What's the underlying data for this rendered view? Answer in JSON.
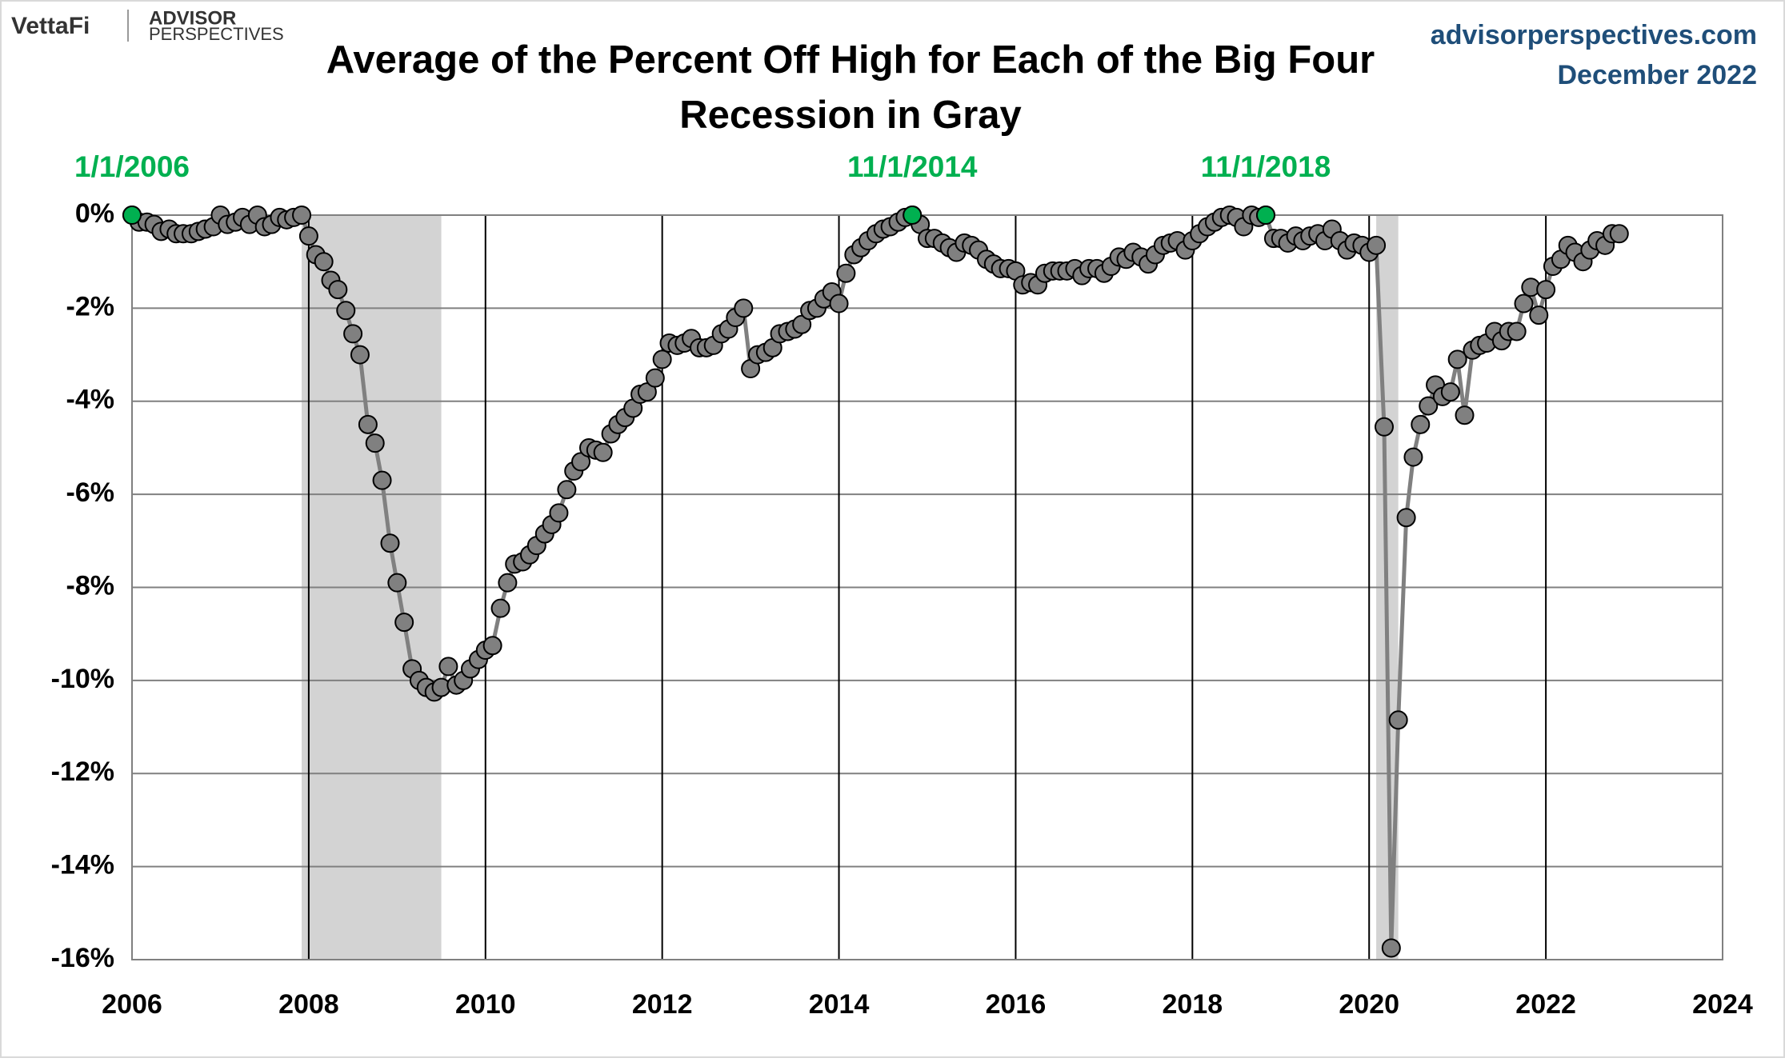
{
  "header": {
    "brand": "VettaFi",
    "logo_top": "ADVISOR",
    "logo_bottom": "PERSPECTIVES",
    "site": "advisorperspectives.com",
    "date": "December 2022"
  },
  "chart_data": {
    "type": "line",
    "title": "Average of the Percent Off High for Each of the Big Four",
    "subtitle": "Recession in Gray",
    "color": "#808080",
    "marker_edge": "#000000",
    "grid": true,
    "xlim": [
      2006,
      2024
    ],
    "xticks": [
      2006,
      2008,
      2010,
      2012,
      2014,
      2016,
      2018,
      2020,
      2022,
      2024
    ],
    "ylim": [
      -16,
      0
    ],
    "yticks": [
      {
        "value": 0,
        "label": "0%"
      },
      {
        "value": -2,
        "label": "-2%"
      },
      {
        "value": -4,
        "label": "-4%"
      },
      {
        "value": -6,
        "label": "-6%"
      },
      {
        "value": -8,
        "label": "-8%"
      },
      {
        "value": -10,
        "label": "-10%"
      },
      {
        "value": -12,
        "label": "-12%"
      },
      {
        "value": -14,
        "label": "-14%"
      },
      {
        "value": -16,
        "label": "-16%"
      }
    ],
    "recessions": [
      [
        2007.92,
        2009.5
      ],
      [
        2020.08,
        2020.33
      ]
    ],
    "recession_color": "#d3d3d3",
    "highlight_color": "#00b050",
    "highlights": [
      {
        "label": "1/1/2006",
        "x": 2006,
        "y": 0
      },
      {
        "label": "11/1/2014",
        "x": 2014.83,
        "y": 0
      },
      {
        "label": "11/1/2018",
        "x": 2018.83,
        "y": 0
      }
    ],
    "x": [
      2006,
      2006.08,
      2006.17,
      2006.25,
      2006.33,
      2006.42,
      2006.5,
      2006.58,
      2006.67,
      2006.75,
      2006.83,
      2006.92,
      2007,
      2007.08,
      2007.17,
      2007.25,
      2007.33,
      2007.42,
      2007.5,
      2007.58,
      2007.67,
      2007.75,
      2007.83,
      2007.92,
      2008,
      2008.08,
      2008.17,
      2008.25,
      2008.33,
      2008.42,
      2008.5,
      2008.58,
      2008.67,
      2008.75,
      2008.83,
      2008.92,
      2009,
      2009.08,
      2009.17,
      2009.25,
      2009.33,
      2009.42,
      2009.5,
      2009.58,
      2009.67,
      2009.75,
      2009.83,
      2009.92,
      2010,
      2010.08,
      2010.17,
      2010.25,
      2010.33,
      2010.42,
      2010.5,
      2010.58,
      2010.67,
      2010.75,
      2010.83,
      2010.92,
      2011,
      2011.08,
      2011.17,
      2011.25,
      2011.33,
      2011.42,
      2011.5,
      2011.58,
      2011.67,
      2011.75,
      2011.83,
      2011.92,
      2012,
      2012.08,
      2012.17,
      2012.25,
      2012.33,
      2012.42,
      2012.5,
      2012.58,
      2012.67,
      2012.75,
      2012.83,
      2012.92,
      2013,
      2013.08,
      2013.17,
      2013.25,
      2013.33,
      2013.42,
      2013.5,
      2013.58,
      2013.67,
      2013.75,
      2013.83,
      2013.92,
      2014,
      2014.08,
      2014.17,
      2014.25,
      2014.33,
      2014.42,
      2014.5,
      2014.58,
      2014.67,
      2014.75,
      2014.83,
      2014.92,
      2015,
      2015.08,
      2015.17,
      2015.25,
      2015.33,
      2015.42,
      2015.5,
      2015.58,
      2015.67,
      2015.75,
      2015.83,
      2015.92,
      2016,
      2016.08,
      2016.17,
      2016.25,
      2016.33,
      2016.42,
      2016.5,
      2016.58,
      2016.67,
      2016.75,
      2016.83,
      2016.92,
      2017,
      2017.08,
      2017.17,
      2017.25,
      2017.33,
      2017.42,
      2017.5,
      2017.58,
      2017.67,
      2017.75,
      2017.83,
      2017.92,
      2018,
      2018.08,
      2018.17,
      2018.25,
      2018.33,
      2018.42,
      2018.5,
      2018.58,
      2018.67,
      2018.75,
      2018.83,
      2018.92,
      2019,
      2019.08,
      2019.17,
      2019.25,
      2019.33,
      2019.42,
      2019.5,
      2019.58,
      2019.67,
      2019.75,
      2019.83,
      2019.92,
      2020,
      2020.08,
      2020.17,
      2020.25,
      2020.33,
      2020.42,
      2020.5,
      2020.58,
      2020.67,
      2020.75,
      2020.83,
      2020.92,
      2021,
      2021.08,
      2021.17,
      2021.25,
      2021.33,
      2021.42,
      2021.5,
      2021.58,
      2021.67,
      2021.75,
      2021.83,
      2021.92,
      2022,
      2022.08,
      2022.17,
      2022.25,
      2022.33,
      2022.42,
      2022.5,
      2022.58,
      2022.67,
      2022.75,
      2022.83
    ],
    "values": [
      0,
      -0.15,
      -0.15,
      -0.2,
      -0.35,
      -0.3,
      -0.4,
      -0.4,
      -0.4,
      -0.35,
      -0.3,
      -0.25,
      0,
      -0.2,
      -0.15,
      -0.05,
      -0.2,
      0,
      -0.25,
      -0.2,
      -0.05,
      -0.1,
      -0.05,
      0,
      -0.45,
      -0.85,
      -1.0,
      -1.4,
      -1.6,
      -2.05,
      -2.55,
      -3.0,
      -4.5,
      -4.9,
      -5.7,
      -7.05,
      -7.9,
      -8.75,
      -9.75,
      -10.0,
      -10.15,
      -10.25,
      -10.15,
      -9.7,
      -10.1,
      -10.0,
      -9.75,
      -9.55,
      -9.35,
      -9.25,
      -8.45,
      -7.9,
      -7.5,
      -7.45,
      -7.3,
      -7.1,
      -6.85,
      -6.65,
      -6.4,
      -5.9,
      -5.5,
      -5.3,
      -5.0,
      -5.05,
      -5.1,
      -4.7,
      -4.5,
      -4.35,
      -4.15,
      -3.85,
      -3.8,
      -3.5,
      -3.1,
      -2.75,
      -2.8,
      -2.75,
      -2.65,
      -2.85,
      -2.85,
      -2.8,
      -2.55,
      -2.45,
      -2.2,
      -2.0,
      -3.3,
      -3.0,
      -2.95,
      -2.85,
      -2.55,
      -2.5,
      -2.45,
      -2.35,
      -2.05,
      -2.0,
      -1.8,
      -1.65,
      -1.9,
      -1.25,
      -0.85,
      -0.7,
      -0.55,
      -0.4,
      -0.3,
      -0.25,
      -0.15,
      -0.05,
      0,
      -0.2,
      -0.5,
      -0.5,
      -0.6,
      -0.7,
      -0.8,
      -0.6,
      -0.65,
      -0.75,
      -0.95,
      -1.05,
      -1.15,
      -1.15,
      -1.2,
      -1.5,
      -1.45,
      -1.5,
      -1.25,
      -1.2,
      -1.2,
      -1.2,
      -1.15,
      -1.3,
      -1.15,
      -1.15,
      -1.25,
      -1.1,
      -0.9,
      -0.95,
      -0.8,
      -0.9,
      -1.05,
      -0.85,
      -0.65,
      -0.6,
      -0.55,
      -0.75,
      -0.55,
      -0.4,
      -0.25,
      -0.15,
      -0.05,
      0,
      -0.05,
      -0.25,
      0,
      -0.05,
      0,
      -0.5,
      -0.5,
      -0.6,
      -0.45,
      -0.55,
      -0.45,
      -0.4,
      -0.55,
      -0.3,
      -0.55,
      -0.75,
      -0.6,
      -0.65,
      -0.8,
      -0.65,
      -4.55,
      -15.75,
      -10.85,
      -6.5,
      -5.2,
      -4.5,
      -4.1,
      -3.65,
      -3.9,
      -3.8,
      -3.1,
      -4.3,
      -2.9,
      -2.8,
      -2.75,
      -2.5,
      -2.7,
      -2.5,
      -2.5,
      -1.9,
      -1.55,
      -2.15,
      -1.6,
      -1.1,
      -0.95,
      -0.65,
      -0.8,
      -1.0,
      -0.75,
      -0.55,
      -0.65,
      -0.4,
      -0.4
    ]
  }
}
